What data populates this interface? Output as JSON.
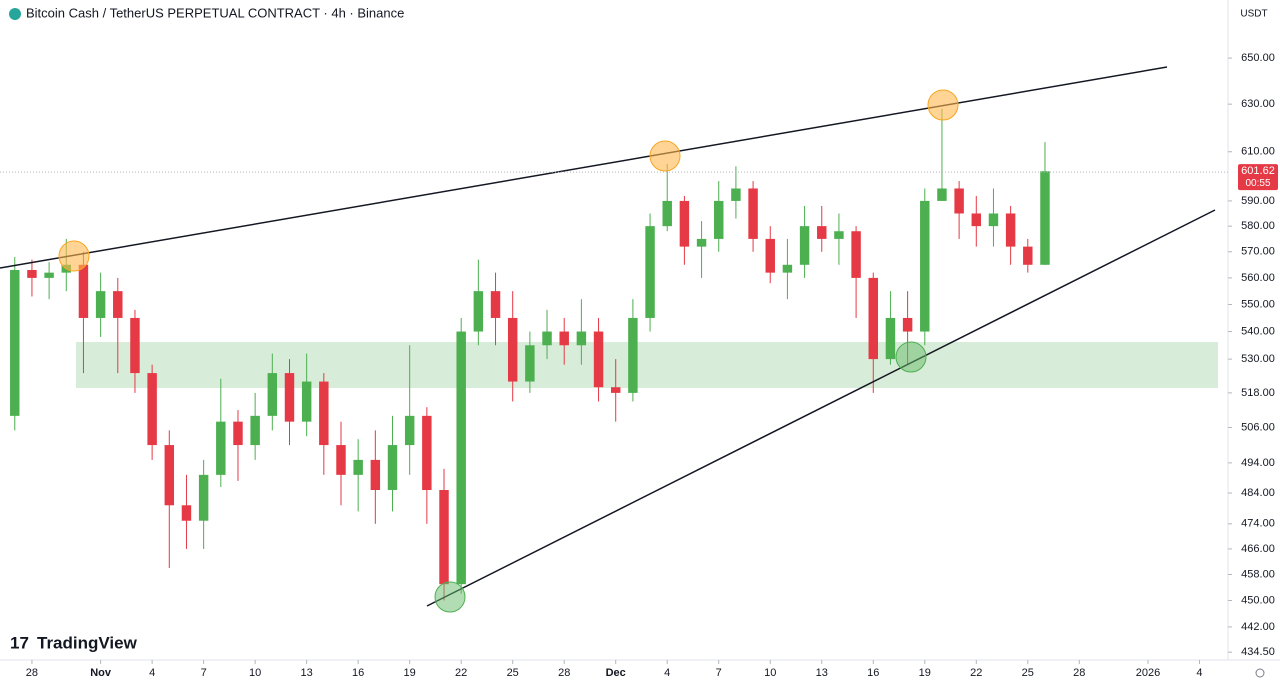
{
  "chart_data": {
    "type": "candlestick",
    "title": "Bitcoin Cash / TetherUS PERPETUAL CONTRACT · 4h · Binance",
    "currency": "USDT",
    "brand": "TradingView",
    "log_scale": true,
    "up_color": "#4caf50",
    "down_color": "#e53945",
    "categories": [
      null,
      null,
      null,
      null,
      null,
      null,
      null,
      null,
      null,
      null,
      null,
      null,
      null,
      null,
      null,
      null,
      null,
      null,
      null,
      null,
      null,
      null,
      null,
      null,
      null,
      null,
      null,
      null,
      null,
      null,
      null,
      null,
      null,
      null,
      null,
      null,
      null,
      null,
      null,
      null,
      null,
      null,
      null,
      null,
      null,
      null,
      null,
      null,
      null,
      null,
      null,
      null,
      null,
      null,
      null,
      null,
      null,
      null,
      null,
      null,
      null
    ],
    "open": [
      510,
      563,
      560,
      562,
      565,
      545,
      555,
      545,
      525,
      500,
      480,
      475,
      490,
      508,
      500,
      510,
      525,
      508,
      522,
      500,
      490,
      495,
      485,
      500,
      510,
      485,
      455,
      540,
      555,
      545,
      522,
      535,
      540,
      535,
      540,
      520,
      518,
      545,
      580,
      590,
      572,
      575,
      590,
      595,
      575,
      562,
      565,
      580,
      575,
      578,
      560,
      530,
      545,
      540,
      590,
      595,
      585,
      580,
      585,
      572,
      565
    ],
    "high": [
      568,
      567,
      566,
      575,
      570,
      562,
      560,
      548,
      528,
      505,
      490,
      495,
      523,
      512,
      518,
      532,
      530,
      532,
      525,
      508,
      502,
      505,
      510,
      535,
      513,
      492,
      545,
      567,
      562,
      555,
      540,
      548,
      545,
      552,
      545,
      530,
      552,
      585,
      605,
      592,
      582,
      598,
      604,
      598,
      580,
      575,
      588,
      588,
      585,
      580,
      562,
      555,
      555,
      595,
      628,
      598,
      592,
      595,
      588,
      575,
      614
    ],
    "low": [
      505,
      553,
      552,
      555,
      525,
      538,
      525,
      518,
      495,
      460,
      466,
      466,
      486,
      488,
      495,
      505,
      500,
      503,
      490,
      480,
      478,
      474,
      478,
      490,
      474,
      450,
      452,
      535,
      535,
      515,
      518,
      530,
      528,
      528,
      515,
      508,
      515,
      540,
      578,
      565,
      560,
      570,
      583,
      570,
      558,
      552,
      560,
      570,
      565,
      545,
      518,
      528,
      528,
      535,
      590,
      575,
      572,
      572,
      565,
      562,
      565
    ],
    "close": [
      563,
      560,
      562,
      565,
      545,
      555,
      545,
      525,
      500,
      480,
      475,
      490,
      508,
      500,
      510,
      525,
      508,
      522,
      500,
      490,
      495,
      485,
      500,
      510,
      485,
      455,
      540,
      555,
      545,
      522,
      535,
      540,
      535,
      540,
      520,
      518,
      545,
      580,
      590,
      572,
      575,
      590,
      595,
      575,
      562,
      565,
      580,
      575,
      578,
      560,
      530,
      545,
      540,
      590,
      595,
      585,
      580,
      585,
      572,
      565,
      602
    ],
    "xlim": [
      -0.86,
      70.66
    ],
    "xticks": [
      {
        "value": 1,
        "label": "28"
      },
      {
        "value": 5,
        "label": "Nov"
      },
      {
        "value": 8,
        "label": "4"
      },
      {
        "value": 11,
        "label": "7"
      },
      {
        "value": 14,
        "label": "10"
      },
      {
        "value": 17,
        "label": "13"
      },
      {
        "value": 20,
        "label": "16"
      },
      {
        "value": 23,
        "label": "19"
      },
      {
        "value": 26,
        "label": "22"
      },
      {
        "value": 29,
        "label": "25"
      },
      {
        "value": 32,
        "label": "28"
      },
      {
        "value": 35,
        "label": "Dec"
      },
      {
        "value": 38,
        "label": "4"
      },
      {
        "value": 41,
        "label": "7"
      },
      {
        "value": 44,
        "label": "10"
      },
      {
        "value": 47,
        "label": "13"
      },
      {
        "value": 50,
        "label": "16"
      },
      {
        "value": 53,
        "label": "19"
      },
      {
        "value": 56,
        "label": "22"
      },
      {
        "value": 59,
        "label": "25"
      },
      {
        "value": 62,
        "label": "28"
      },
      {
        "value": 66,
        "label": "2026"
      },
      {
        "value": 69,
        "label": "4"
      }
    ],
    "ylim": [
      432.2,
      676.1
    ],
    "yticks": [
      {
        "value": 650,
        "label": "650.00"
      },
      {
        "value": 630,
        "label": "630.00"
      },
      {
        "value": 610,
        "label": "610.00"
      },
      {
        "value": 590,
        "label": "590.00"
      },
      {
        "value": 580,
        "label": "580.00"
      },
      {
        "value": 570,
        "label": "570.00"
      },
      {
        "value": 560,
        "label": "560.00"
      },
      {
        "value": 550,
        "label": "550.00"
      },
      {
        "value": 540,
        "label": "540.00"
      },
      {
        "value": 530,
        "label": "530.00"
      },
      {
        "value": 518,
        "label": "518.00"
      },
      {
        "value": 506,
        "label": "506.00"
      },
      {
        "value": 494,
        "label": "494.00"
      },
      {
        "value": 484,
        "label": "484.00"
      },
      {
        "value": 474,
        "label": "474.00"
      },
      {
        "value": 466,
        "label": "466.00"
      },
      {
        "value": 458,
        "label": "458.00"
      },
      {
        "value": 450,
        "label": "450.00"
      },
      {
        "value": 442,
        "label": "442.00"
      },
      {
        "value": 434.5,
        "label": "434.50"
      }
    ],
    "last_price": {
      "value": 601.62,
      "label": "601.62"
    },
    "countdown": "00:55"
  }
}
